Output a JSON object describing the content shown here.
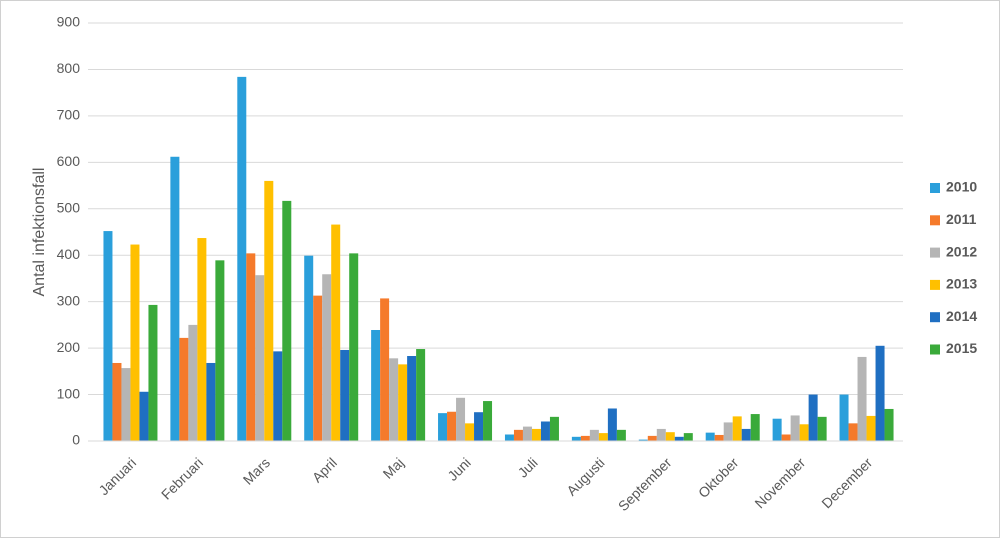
{
  "chart_data": {
    "type": "bar",
    "y_label": "Antal infektionsfall",
    "categories": [
      "Januari",
      "Februari",
      "Mars",
      "April",
      "Maj",
      "Juni",
      "Juli",
      "Augusti",
      "September",
      "Oktober",
      "November",
      "December"
    ],
    "series": [
      {
        "name": "2010",
        "color": "#2a9fdb",
        "values": [
          452,
          612,
          784,
          399,
          239,
          60,
          14,
          9,
          3,
          18,
          48,
          100
        ]
      },
      {
        "name": "2011",
        "color": "#f57a2b",
        "values": [
          168,
          222,
          404,
          313,
          307,
          63,
          24,
          11,
          11,
          13,
          14,
          38
        ]
      },
      {
        "name": "2012",
        "color": "#b5b5b5",
        "values": [
          157,
          250,
          357,
          359,
          178,
          93,
          31,
          24,
          26,
          40,
          55,
          181
        ]
      },
      {
        "name": "2013",
        "color": "#ffc000",
        "values": [
          423,
          437,
          560,
          466,
          165,
          38,
          26,
          17,
          19,
          53,
          36,
          54
        ]
      },
      {
        "name": "2014",
        "color": "#1f6fc2",
        "values": [
          106,
          168,
          193,
          196,
          183,
          62,
          42,
          70,
          9,
          26,
          100,
          205
        ]
      },
      {
        "name": "2015",
        "color": "#3aaa3a",
        "values": [
          293,
          389,
          517,
          404,
          198,
          86,
          52,
          24,
          17,
          58,
          52,
          69
        ]
      }
    ],
    "ylim": [
      0,
      900
    ],
    "yticks": [
      0,
      100,
      200,
      300,
      400,
      500,
      600,
      700,
      800,
      900
    ],
    "grid": true,
    "legend": "right"
  }
}
